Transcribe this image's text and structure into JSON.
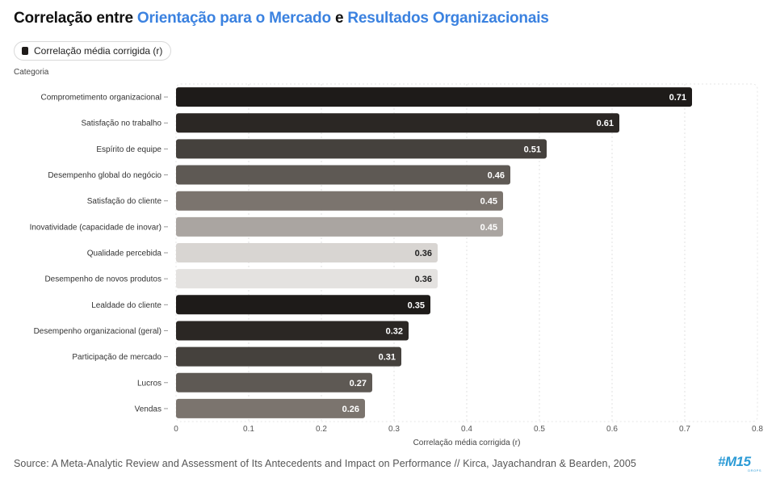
{
  "title": {
    "prefix": "Correlação entre ",
    "highlight1": "Orientação para o Mercado",
    "middle": " e ",
    "highlight2": "Resultados Organizacionais"
  },
  "legend": {
    "label": "Correlação média corrigida (r)"
  },
  "category_axis_title": "Categoria",
  "source": "Source: A Meta-Analytic Review and Assessment of Its Antecedents and Impact on Performance // Kirca, Jayachandran & Bearden, 2005",
  "logo": {
    "text": "#M15",
    "sub": "DROPS"
  },
  "colors": {
    "highlight": "#3b82e0",
    "bar_dark": "#1e1b19",
    "bar_dark2": "#45413d",
    "bar_mid": "#5e5954",
    "bar_gray": "#7b746e",
    "bar_light": "#aaa5a1",
    "bar_pale": "#d8d5d2",
    "bar_palest": "#e4e2e0"
  },
  "chart_data": {
    "type": "bar",
    "orientation": "horizontal",
    "title": "Correlação entre Orientação para o Mercado e Resultados Organizacionais",
    "xlabel": "Correlação média corrigida (r)",
    "ylabel": "Categoria",
    "xlim": [
      0,
      0.8
    ],
    "xticks": [
      "0",
      "0.1",
      "0.2",
      "0.3",
      "0.4",
      "0.5",
      "0.6",
      "0.7",
      "0.8"
    ],
    "grid": true,
    "categories": [
      "Comprometimento organizacional",
      "Satisfação no trabalho",
      "Espírito de equipe",
      "Desempenho global do negócio",
      "Satisfação do cliente",
      "Inovatividade (capacidade de inovar)",
      "Qualidade percebida",
      "Desempenho de novos produtos",
      "Lealdade do cliente",
      "Desempenho organizacional (geral)",
      "Participação de mercado",
      "Lucros",
      "Vendas"
    ],
    "values": [
      0.71,
      0.61,
      0.51,
      0.46,
      0.45,
      0.45,
      0.36,
      0.36,
      0.35,
      0.32,
      0.31,
      0.27,
      0.26
    ],
    "value_labels": [
      "0.71",
      "0.61",
      "0.51",
      "0.46",
      "0.45",
      "0.45",
      "0.36",
      "0.36",
      "0.35",
      "0.32",
      "0.31",
      "0.27",
      "0.26"
    ],
    "bar_colors": [
      "#1e1b19",
      "#2b2724",
      "#45413d",
      "#5e5954",
      "#7b746e",
      "#aaa5a1",
      "#d8d5d2",
      "#e4e2e0",
      "#1e1b19",
      "#2b2724",
      "#45413d",
      "#5e5954",
      "#7b746e"
    ],
    "label_colors": [
      "#ffffff",
      "#ffffff",
      "#ffffff",
      "#ffffff",
      "#ffffff",
      "#ffffff",
      "#222222",
      "#222222",
      "#ffffff",
      "#ffffff",
      "#ffffff",
      "#ffffff",
      "#ffffff"
    ]
  }
}
